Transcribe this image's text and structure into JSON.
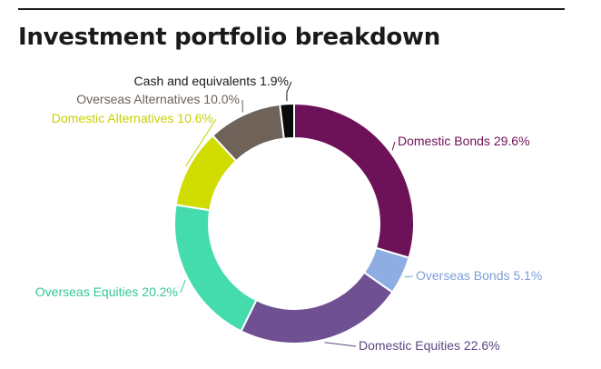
{
  "title": "Investment portfolio breakdown",
  "chart_data": {
    "type": "pie",
    "title": "Investment portfolio breakdown",
    "donut": true,
    "legend": "none",
    "slices": [
      {
        "name": "Domestic Bonds",
        "value": 29.6,
        "label": "Domestic Bonds 29.6%",
        "color": "#6d1258",
        "text_color": "#6d1258"
      },
      {
        "name": "Overseas Bonds",
        "value": 5.1,
        "label": "Overseas Bonds 5.1%",
        "color": "#8eaee3",
        "text_color": "#7e9fd8"
      },
      {
        "name": "Domestic Equities",
        "value": 22.6,
        "label": "Domestic Equities 22.6%",
        "color": "#6e5093",
        "text_color": "#5e4683"
      },
      {
        "name": "Overseas Equities",
        "value": 20.2,
        "label": "Overseas Equities 20.2%",
        "color": "#45dcad",
        "text_color": "#33c79a"
      },
      {
        "name": "Domestic Alternatives",
        "value": 10.6,
        "label": "Domestic Alternatives 10.6%",
        "color": "#d1dd00",
        "text_color": "#c7d200"
      },
      {
        "name": "Overseas Alternatives",
        "value": 10.0,
        "label": "Overseas Alternatives 10.0%",
        "color": "#6e6259",
        "text_color": "#6e6259"
      },
      {
        "name": "Cash and equivalents",
        "value": 1.9,
        "label": "Cash and equivalents 1.9%",
        "color": "#0a0a0a",
        "text_color": "#1a1a1a"
      }
    ]
  }
}
